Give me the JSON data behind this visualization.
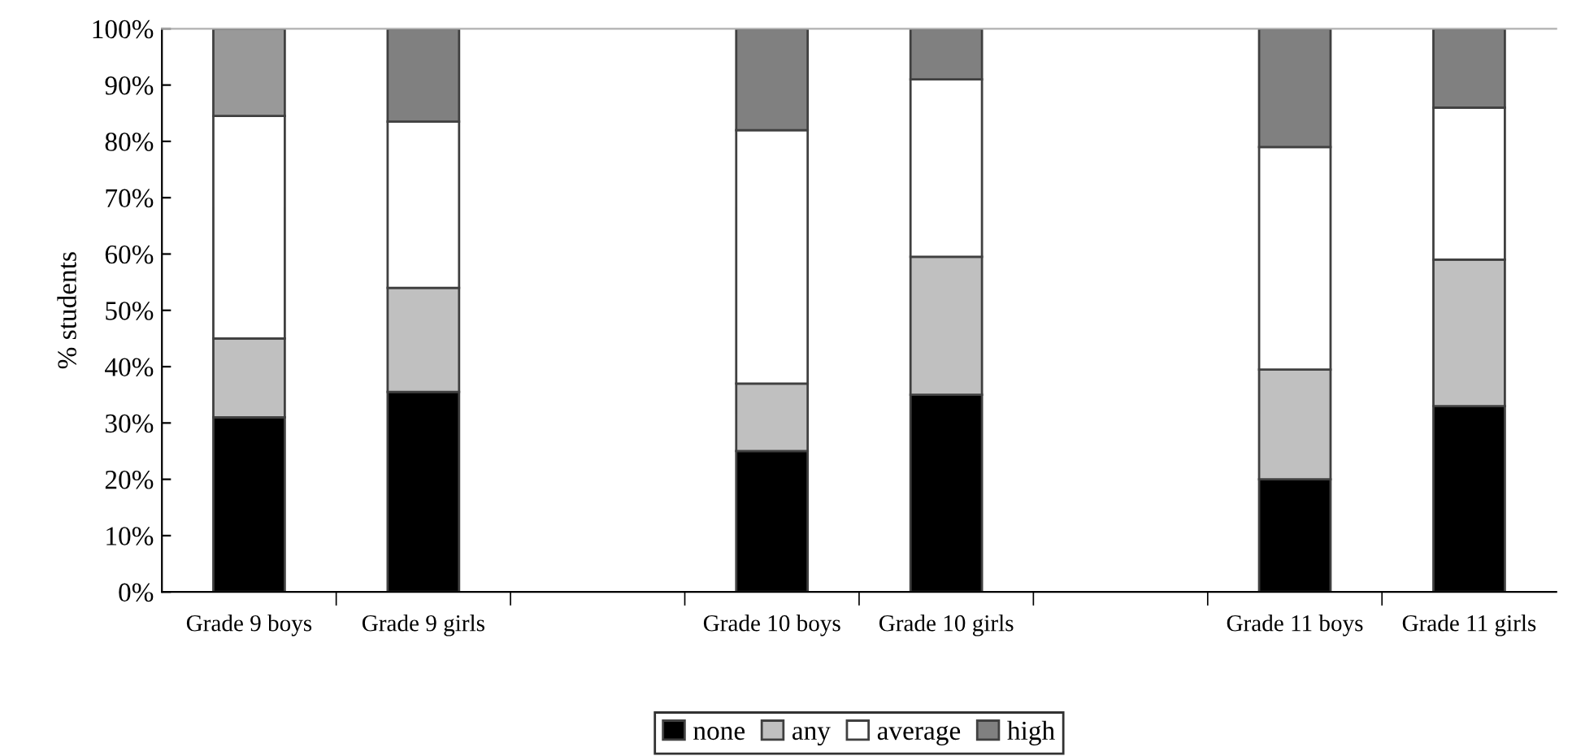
{
  "chart_data": {
    "type": "bar",
    "stacked": true,
    "ylabel": "% students",
    "categories": [
      "Grade 9 boys",
      "Grade 9 girls",
      null,
      "Grade 10 boys",
      "Grade 10 girls",
      null,
      "Grade 11 boys",
      "Grade 11 girls"
    ],
    "series": [
      {
        "name": "none",
        "color": "#000000",
        "values": [
          31,
          35.5,
          null,
          25,
          35,
          null,
          20,
          33
        ]
      },
      {
        "name": "any",
        "color": "#c0c0c0",
        "values": [
          14,
          18.5,
          null,
          12,
          24.5,
          null,
          19.5,
          26
        ]
      },
      {
        "name": "average",
        "color": "#ffffff",
        "values": [
          39.5,
          29.5,
          null,
          45,
          31.5,
          null,
          39.5,
          27
        ]
      },
      {
        "name": "high",
        "color": "#808080",
        "colors": [
          "#999999",
          "#808080",
          null,
          "#808080",
          "#808080",
          null,
          "#808080",
          "#808080"
        ],
        "values": [
          15.5,
          16.5,
          null,
          18,
          9,
          null,
          21,
          14
        ]
      }
    ],
    "ylim": [
      0,
      100
    ],
    "yticks": [
      {
        "value": 0,
        "label": "0%"
      },
      {
        "value": 10,
        "label": "10%"
      },
      {
        "value": 20,
        "label": "20%"
      },
      {
        "value": 30,
        "label": "30%"
      },
      {
        "value": 40,
        "label": "40%"
      },
      {
        "value": 50,
        "label": "50%"
      },
      {
        "value": 60,
        "label": "60%"
      },
      {
        "value": 70,
        "label": "70%"
      },
      {
        "value": 80,
        "label": "80%"
      },
      {
        "value": 90,
        "label": "90%"
      },
      {
        "value": 100,
        "label": "100%"
      }
    ],
    "grid": false,
    "legend": "bottom"
  }
}
